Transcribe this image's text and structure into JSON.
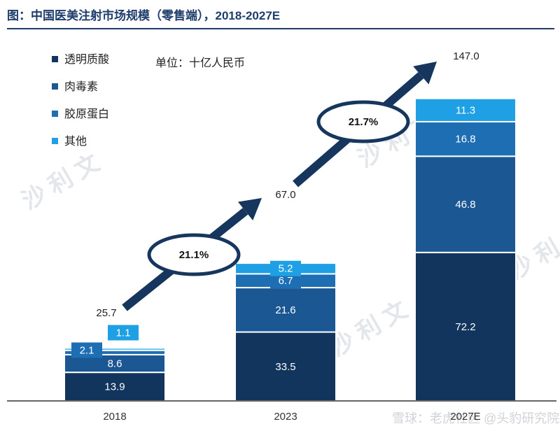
{
  "title": "图：中国医美注射市场规模（零售端），2018-2027E",
  "unit_label": "单位：十亿人民币",
  "watermark": "沙 利 文",
  "source_watermark": "雪球：老虎社区 @头豹研究院",
  "colors": {
    "透明质酸": "#12355e",
    "肉毒素": "#1b5792",
    "胶原蛋白": "#1e6eb4",
    "其他": "#1fa0e4",
    "axis": "#333333",
    "arrow": "#16365e"
  },
  "chart_data": {
    "type": "bar",
    "stacked": true,
    "categories": [
      "2018",
      "2023",
      "2027E"
    ],
    "series": [
      {
        "name": "透明质酸",
        "values": [
          13.9,
          33.5,
          72.2
        ],
        "labels": [
          "13.9",
          "33.5",
          "72.2"
        ]
      },
      {
        "name": "肉毒素",
        "values": [
          8.6,
          21.6,
          46.8
        ],
        "labels": [
          "8.6",
          "21.6",
          "46.8"
        ]
      },
      {
        "name": "胶原蛋白",
        "values": [
          2.1,
          6.7,
          16.8
        ],
        "labels": [
          "2.1",
          "6.7",
          "16.8"
        ]
      },
      {
        "name": "其他",
        "values": [
          1.1,
          5.2,
          11.3
        ],
        "labels": [
          "1.1",
          "5.2",
          "11.3"
        ]
      }
    ],
    "totals": [
      "25.7",
      "67.0",
      "147.0"
    ],
    "cagr": [
      "21.1%",
      "21.7%"
    ],
    "ylim": [
      0,
      147
    ],
    "legend_position": "top-left",
    "grid": false
  }
}
